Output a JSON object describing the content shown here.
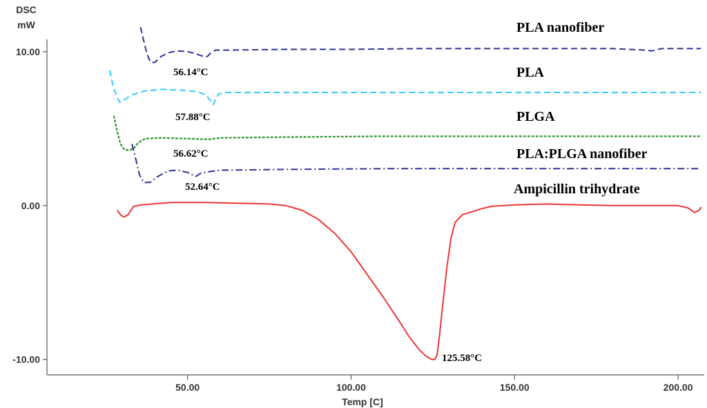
{
  "chart_data": {
    "type": "line",
    "xlabel": "Temp [C]",
    "ylabel": "DSC",
    "yunit": "mW",
    "xlim": [
      7,
      208
    ],
    "ylim": [
      -11,
      10.8
    ],
    "x_ticks": [
      50,
      100,
      150,
      200
    ],
    "x_tick_labels": [
      "50.00",
      "100.00",
      "150.00",
      "200.00"
    ],
    "y_ticks": [
      10,
      0,
      -10
    ],
    "y_tick_labels": [
      "10.00",
      "0.00",
      "-10.00"
    ],
    "grid": false,
    "series": [
      {
        "name": "PLA nanofiber",
        "color": "#2e3192",
        "style": "dashed",
        "points": [
          [
            35.6,
            11.6
          ],
          [
            36.5,
            10.8
          ],
          [
            37.5,
            9.9
          ],
          [
            38.7,
            9.3
          ],
          [
            40,
            9.3
          ],
          [
            42,
            9.7
          ],
          [
            44.5,
            9.95
          ],
          [
            47,
            10.05
          ],
          [
            50,
            10.0
          ],
          [
            52,
            9.9
          ],
          [
            54,
            9.75
          ],
          [
            55.5,
            9.65
          ],
          [
            56.1,
            9.7
          ],
          [
            57,
            9.9
          ],
          [
            58.5,
            10.1
          ],
          [
            62,
            10.1
          ],
          [
            80,
            10.15
          ],
          [
            100,
            10.15
          ],
          [
            120,
            10.2
          ],
          [
            150,
            10.2
          ],
          [
            180,
            10.2
          ],
          [
            190,
            10.1
          ],
          [
            192,
            10.05
          ],
          [
            195,
            10.2
          ],
          [
            207,
            10.2
          ]
        ],
        "peak_label": "56.14°C"
      },
      {
        "name": "PLA",
        "color": "#33ccff",
        "style": "dashed",
        "points": [
          [
            26.2,
            8.8
          ],
          [
            27.2,
            7.8
          ],
          [
            28.3,
            7.1
          ],
          [
            29.3,
            6.7
          ],
          [
            30.5,
            6.85
          ],
          [
            33,
            7.2
          ],
          [
            37,
            7.45
          ],
          [
            42,
            7.55
          ],
          [
            48,
            7.5
          ],
          [
            53,
            7.4
          ],
          [
            55.5,
            7.2
          ],
          [
            56.5,
            6.95
          ],
          [
            57.4,
            6.7
          ],
          [
            57.9,
            6.55
          ],
          [
            58.6,
            6.95
          ],
          [
            59.5,
            7.25
          ],
          [
            62,
            7.35
          ],
          [
            80,
            7.35
          ],
          [
            110,
            7.35
          ],
          [
            150,
            7.35
          ],
          [
            180,
            7.35
          ],
          [
            207,
            7.35
          ]
        ],
        "peak_label": "57.88°C"
      },
      {
        "name": "PLGA",
        "color": "#339933",
        "style": "dotted",
        "points": [
          [
            27.5,
            5.8
          ],
          [
            28.5,
            4.8
          ],
          [
            29.5,
            4.0
          ],
          [
            30.6,
            3.65
          ],
          [
            32,
            3.6
          ],
          [
            33.5,
            3.7
          ],
          [
            35,
            4.1
          ],
          [
            37,
            4.35
          ],
          [
            42,
            4.4
          ],
          [
            50,
            4.35
          ],
          [
            56.6,
            4.3
          ],
          [
            60,
            4.4
          ],
          [
            80,
            4.45
          ],
          [
            110,
            4.5
          ],
          [
            150,
            4.5
          ],
          [
            180,
            4.5
          ],
          [
            207,
            4.5
          ]
        ],
        "peak_label": "56.62°C"
      },
      {
        "name": "PLA:PLGA nanofiber",
        "color": "#2e3192",
        "style": "dashdot",
        "points": [
          [
            33,
            4.0
          ],
          [
            34.2,
            3.0
          ],
          [
            35.3,
            2.0
          ],
          [
            36.6,
            1.5
          ],
          [
            38.5,
            1.5
          ],
          [
            41,
            1.9
          ],
          [
            44,
            2.25
          ],
          [
            47,
            2.3
          ],
          [
            50,
            2.15
          ],
          [
            52,
            1.95
          ],
          [
            52.6,
            1.9
          ],
          [
            54,
            2.1
          ],
          [
            56.5,
            2.2
          ],
          [
            60,
            2.3
          ],
          [
            80,
            2.35
          ],
          [
            110,
            2.4
          ],
          [
            150,
            2.4
          ],
          [
            180,
            2.4
          ],
          [
            207,
            2.4
          ]
        ],
        "peak_label": "52.64°C"
      },
      {
        "name": "Ampicillin trihydrate",
        "color": "#ee3333",
        "style": "solid",
        "points": [
          [
            28.5,
            -0.3
          ],
          [
            29.5,
            -0.6
          ],
          [
            30.5,
            -0.75
          ],
          [
            31.8,
            -0.6
          ],
          [
            33.5,
            -0.05
          ],
          [
            36,
            0.05
          ],
          [
            45,
            0.2
          ],
          [
            55,
            0.2
          ],
          [
            65,
            0.15
          ],
          [
            75,
            0.1
          ],
          [
            80,
            0.0
          ],
          [
            85,
            -0.3
          ],
          [
            90,
            -0.9
          ],
          [
            95,
            -1.8
          ],
          [
            100,
            -3.0
          ],
          [
            105,
            -4.5
          ],
          [
            110,
            -6.0
          ],
          [
            115,
            -7.6
          ],
          [
            118,
            -8.6
          ],
          [
            121,
            -9.4
          ],
          [
            123,
            -9.8
          ],
          [
            124.7,
            -10.0
          ],
          [
            125.6,
            -10.0
          ],
          [
            126.3,
            -9.7
          ],
          [
            127,
            -8.5
          ],
          [
            128,
            -6.5
          ],
          [
            129.3,
            -4.0
          ],
          [
            130.5,
            -2.2
          ],
          [
            131.8,
            -1.1
          ],
          [
            134,
            -0.6
          ],
          [
            137,
            -0.4
          ],
          [
            140,
            -0.2
          ],
          [
            143,
            -0.05
          ],
          [
            150,
            0.05
          ],
          [
            160,
            0.1
          ],
          [
            170,
            0.05
          ],
          [
            180,
            0.0
          ],
          [
            195,
            0.0
          ],
          [
            200,
            0.0
          ],
          [
            203,
            -0.15
          ],
          [
            205,
            -0.45
          ],
          [
            206.5,
            -0.3
          ],
          [
            207,
            -0.1
          ]
        ],
        "peak_label": "125.58°C"
      }
    ]
  }
}
